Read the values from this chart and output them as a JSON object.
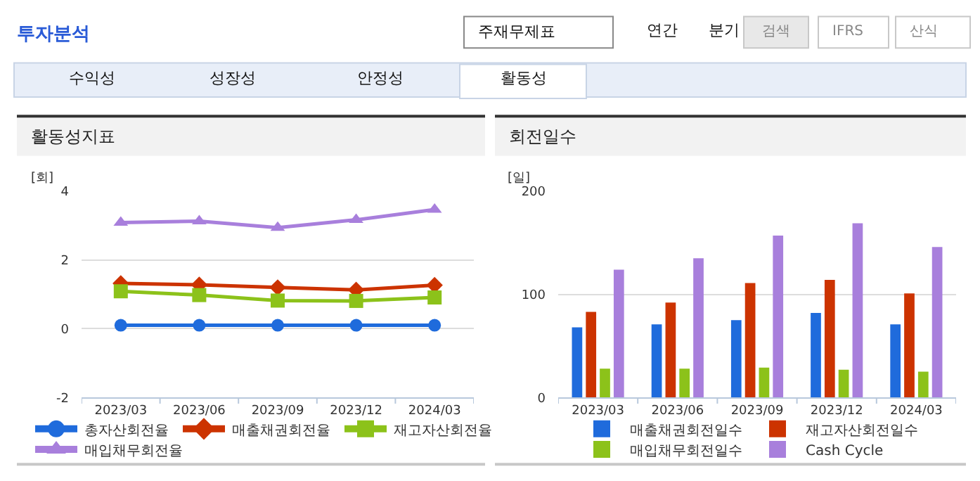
{
  "chart_data": [
    {
      "type": "other",
      "title": "투자분석",
      "annotations": [
        "주재무제표",
        "연간",
        "분기",
        "검색",
        "IFRS",
        "산식",
        "수익성",
        "성장성",
        "안정성",
        "활동성"
      ]
    },
    {
      "type": "line",
      "title": "활동성지표",
      "ylabel": "[회]",
      "categories": [
        "2023/03",
        "2023/06",
        "2023/09",
        "2023/12",
        "2024/03"
      ],
      "series": [
        {
          "name": "총자산회전율",
          "color": "#1f6bdc",
          "marker": "circle",
          "values": [
            0.1,
            0.1,
            0.1,
            0.1,
            0.1
          ]
        },
        {
          "name": "매출채권회전율",
          "color": "#cc3300",
          "marker": "diamond",
          "values": [
            1.32,
            1.28,
            1.2,
            1.13,
            1.27
          ]
        },
        {
          "name": "재고자산회전율",
          "color": "#8cc21a",
          "marker": "square",
          "values": [
            1.09,
            0.98,
            0.82,
            0.81,
            0.91
          ]
        },
        {
          "name": "매입채무회전율",
          "color": "#a87fdc",
          "marker": "triangle",
          "values": [
            3.09,
            3.13,
            2.94,
            3.17,
            3.47
          ]
        }
      ],
      "ylim": [
        -2,
        4
      ],
      "yticks": [
        -2,
        0,
        2,
        4
      ],
      "grid": "y",
      "legend": "bottom",
      "line_style": "solid"
    },
    {
      "type": "bar",
      "title": "회전일수",
      "ylabel": "[일]",
      "categories": [
        "2023/03",
        "2023/06",
        "2023/09",
        "2023/12",
        "2024/03"
      ],
      "series": [
        {
          "name": "매출채권회전일수",
          "color": "#1f6bdc",
          "values": [
            68,
            71,
            75,
            82,
            71
          ]
        },
        {
          "name": "재고자산회전일수",
          "color": "#cc3300",
          "values": [
            83,
            92,
            111,
            114,
            101
          ]
        },
        {
          "name": "매입채무회전일수",
          "color": "#8cc21a",
          "values": [
            28,
            28,
            29,
            27,
            25
          ]
        },
        {
          "name": "Cash Cycle",
          "color": "#a87fdc",
          "values": [
            124,
            135,
            157,
            169,
            146
          ]
        }
      ],
      "ylim": [
        0,
        200
      ],
      "yticks": [
        0,
        100,
        200
      ],
      "grid": "y",
      "legend": "bottom"
    }
  ]
}
